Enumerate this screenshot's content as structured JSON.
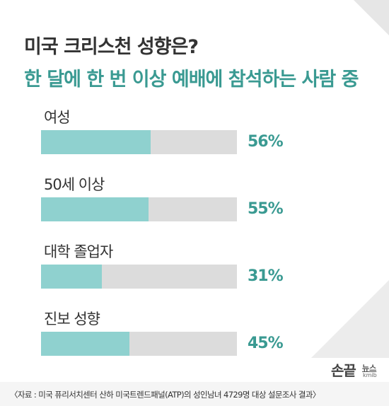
{
  "header": {
    "title": "미국 크리스천 성향은?",
    "subtitle": "한 달에 한 번 이상 예배에 참석하는 사람 중"
  },
  "colors": {
    "bar_fill": "#8fd1cf",
    "bar_track": "#dcdcdc",
    "accent": "#3a9a92",
    "text": "#333333"
  },
  "chart_data": {
    "type": "bar",
    "orientation": "horizontal",
    "categories": [
      "여성",
      "50세 이상",
      "대학 졸업자",
      "진보 성향"
    ],
    "values": [
      56,
      55,
      31,
      45
    ],
    "value_labels": [
      "56%",
      "55%",
      "31%",
      "45%"
    ],
    "xlim": [
      0,
      100
    ],
    "title": "미국 크리스천 성향은?",
    "subtitle": "한 달에 한 번 이상 예배에 참석하는 사람 중"
  },
  "branding": {
    "logo_text": "손끝",
    "logo_sub": "뉴스",
    "logo_mark": "kmib"
  },
  "footer": {
    "source": "〈자료 : 미국 퓨리서치센터 산하 미국트렌드패널(ATP)의 성인남녀 4729명 대상 설문조사 결과〉"
  }
}
